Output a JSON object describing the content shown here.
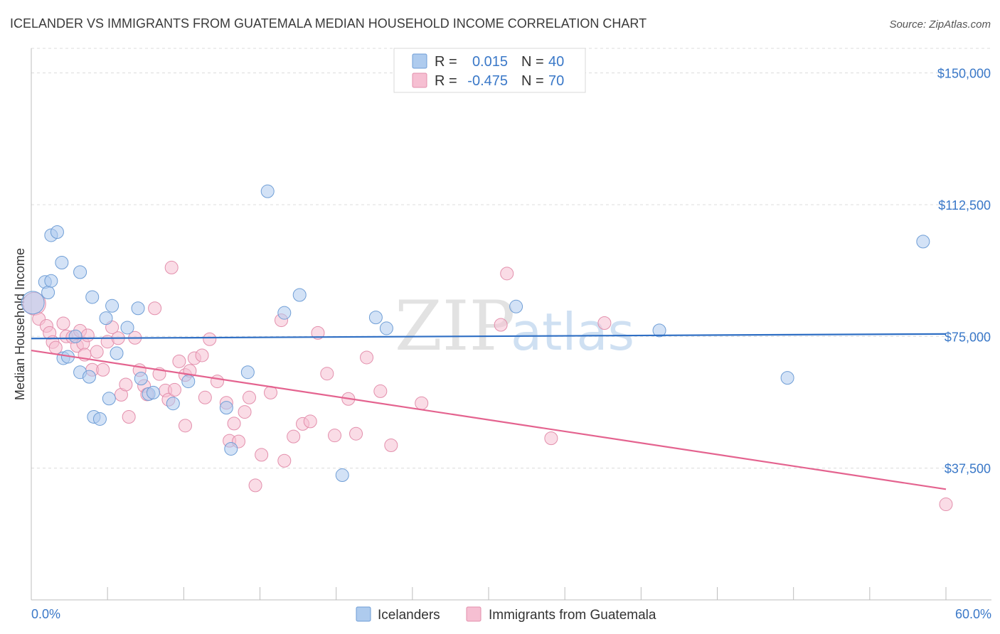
{
  "header": {
    "title": "ICELANDER VS IMMIGRANTS FROM GUATEMALA MEDIAN HOUSEHOLD INCOME CORRELATION CHART",
    "source": "Source: ZipAtlas.com"
  },
  "watermark": {
    "zip": "ZIP",
    "atlas": "atlas"
  },
  "legend": {
    "rows": [
      {
        "r_label": "R =",
        "r_value": "0.015",
        "n_label": "N =",
        "n_value": "40"
      },
      {
        "r_label": "R =",
        "r_value": "-0.475",
        "n_label": "N =",
        "n_value": "70"
      }
    ]
  },
  "colors": {
    "icelanders_fill": "#aecbee",
    "icelanders_stroke": "#6f9ed6",
    "icelanders_line": "#2f6fc4",
    "guatemala_fill": "#f6bfd2",
    "guatemala_stroke": "#e38fac",
    "guatemala_line": "#e4638f",
    "accent_text": "#3a78c8"
  },
  "chart_data": {
    "type": "scatter",
    "title": "ICELANDER VS IMMIGRANTS FROM GUATEMALA MEDIAN HOUSEHOLD INCOME CORRELATION CHART",
    "xlabel": "",
    "ylabel": "Median Household Income",
    "xlim": [
      0,
      60
    ],
    "ylim": [
      0,
      157000
    ],
    "x_tick_labels": [
      "0.0%",
      "60.0%"
    ],
    "y_ticks": [
      37500,
      75000,
      112500,
      150000
    ],
    "y_tick_labels": [
      "$37,500",
      "$75,000",
      "$112,500",
      "$150,000"
    ],
    "grid": true,
    "legend_position": "top-center",
    "series": [
      {
        "name": "Icelanders",
        "trend": [
          [
            0,
            74400
          ],
          [
            60,
            75700
          ]
        ],
        "points": [
          [
            0.1,
            84600
          ],
          [
            0.9,
            90500
          ],
          [
            1.1,
            87500
          ],
          [
            1.3,
            90800
          ],
          [
            1.3,
            103800
          ],
          [
            1.7,
            104700
          ],
          [
            2.0,
            96000
          ],
          [
            2.1,
            68800
          ],
          [
            2.4,
            69200
          ],
          [
            2.9,
            75000
          ],
          [
            3.2,
            93300
          ],
          [
            3.2,
            64800
          ],
          [
            3.8,
            63500
          ],
          [
            4.0,
            86200
          ],
          [
            4.1,
            52100
          ],
          [
            4.5,
            51500
          ],
          [
            4.9,
            80200
          ],
          [
            5.1,
            57300
          ],
          [
            5.3,
            83700
          ],
          [
            5.6,
            70200
          ],
          [
            6.3,
            77500
          ],
          [
            7.0,
            83000
          ],
          [
            7.2,
            63000
          ],
          [
            7.7,
            58600
          ],
          [
            8.0,
            59000
          ],
          [
            9.3,
            55900
          ],
          [
            10.3,
            62200
          ],
          [
            12.8,
            54700
          ],
          [
            13.1,
            43000
          ],
          [
            14.2,
            64800
          ],
          [
            15.5,
            116300
          ],
          [
            16.6,
            81700
          ],
          [
            17.6,
            86800
          ],
          [
            20.4,
            35500
          ],
          [
            22.6,
            80400
          ],
          [
            23.3,
            77300
          ],
          [
            31.8,
            83500
          ],
          [
            41.2,
            76700
          ],
          [
            49.6,
            63200
          ],
          [
            58.5,
            102000
          ]
        ]
      },
      {
        "name": "Immigrants from Guatemala",
        "trend": [
          [
            0,
            71000
          ],
          [
            60,
            31500
          ]
        ],
        "points": [
          [
            0.2,
            84300
          ],
          [
            0.5,
            80000
          ],
          [
            1.0,
            78000
          ],
          [
            1.2,
            76000
          ],
          [
            1.4,
            73400
          ],
          [
            1.6,
            71800
          ],
          [
            2.1,
            78700
          ],
          [
            2.3,
            75000
          ],
          [
            2.7,
            74800
          ],
          [
            3.0,
            72300
          ],
          [
            3.2,
            76600
          ],
          [
            3.4,
            73000
          ],
          [
            3.5,
            69800
          ],
          [
            3.7,
            75300
          ],
          [
            4.0,
            65500
          ],
          [
            4.3,
            70600
          ],
          [
            4.7,
            65500
          ],
          [
            5.0,
            73500
          ],
          [
            5.3,
            77600
          ],
          [
            5.7,
            74500
          ],
          [
            5.9,
            58400
          ],
          [
            6.2,
            61300
          ],
          [
            6.4,
            52100
          ],
          [
            6.8,
            74600
          ],
          [
            7.1,
            65400
          ],
          [
            7.4,
            60900
          ],
          [
            7.6,
            58500
          ],
          [
            8.1,
            83000
          ],
          [
            8.4,
            64300
          ],
          [
            8.8,
            59600
          ],
          [
            9.0,
            57000
          ],
          [
            9.2,
            94600
          ],
          [
            9.4,
            59800
          ],
          [
            9.7,
            67900
          ],
          [
            10.1,
            64000
          ],
          [
            10.1,
            49600
          ],
          [
            10.4,
            65200
          ],
          [
            10.7,
            68800
          ],
          [
            11.2,
            69600
          ],
          [
            11.4,
            57600
          ],
          [
            11.7,
            74200
          ],
          [
            12.2,
            62200
          ],
          [
            12.8,
            56100
          ],
          [
            13.0,
            45300
          ],
          [
            13.3,
            50200
          ],
          [
            13.6,
            45100
          ],
          [
            14.0,
            53500
          ],
          [
            14.3,
            57600
          ],
          [
            14.7,
            32600
          ],
          [
            15.1,
            41300
          ],
          [
            15.7,
            59000
          ],
          [
            16.4,
            79600
          ],
          [
            16.6,
            39600
          ],
          [
            17.2,
            46500
          ],
          [
            17.8,
            50100
          ],
          [
            18.3,
            50800
          ],
          [
            18.8,
            76000
          ],
          [
            19.4,
            64400
          ],
          [
            19.9,
            46800
          ],
          [
            20.8,
            57200
          ],
          [
            21.3,
            47300
          ],
          [
            22.0,
            69000
          ],
          [
            22.9,
            59400
          ],
          [
            23.6,
            44000
          ],
          [
            25.6,
            56000
          ],
          [
            30.8,
            78300
          ],
          [
            31.2,
            92900
          ],
          [
            34.1,
            46000
          ],
          [
            37.6,
            78800
          ],
          [
            60.0,
            27200
          ]
        ]
      }
    ]
  },
  "bottom_legend": [
    "Icelanders",
    "Immigrants from Guatemala"
  ]
}
